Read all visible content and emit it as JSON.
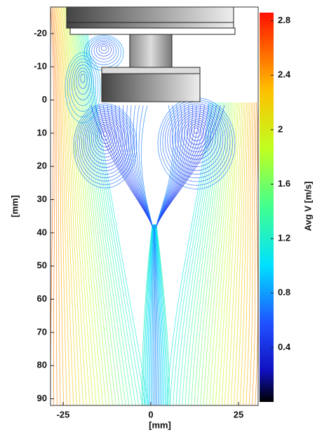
{
  "chart_data": {
    "type": "streamline",
    "xlabel": "[mm]",
    "ylabel": "[mm]",
    "xlim": [
      -28.6,
      30.6
    ],
    "xticks": [
      -25,
      0,
      25
    ],
    "ylim": [
      -28,
      92
    ],
    "yinvert": true,
    "yticks": [
      -20,
      -10,
      0,
      10,
      20,
      30,
      40,
      50,
      60,
      70,
      80,
      90
    ],
    "colorbar": {
      "label": "Avg V [m/s]",
      "lim": [
        0,
        2.86
      ],
      "ticks": [
        0.4,
        0.8,
        1.2,
        1.6,
        2,
        2.4,
        2.8
      ]
    }
  }
}
